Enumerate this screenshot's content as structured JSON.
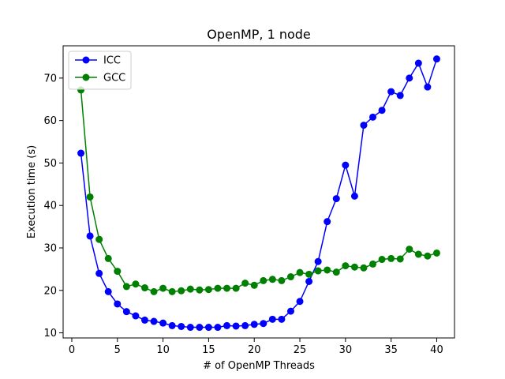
{
  "chart_data": {
    "type": "line",
    "title": "OpenMP, 1 node",
    "xlabel": "# of OpenMP Threads",
    "ylabel": "Execution time (s)",
    "xlim": [
      -0.95,
      41.95
    ],
    "ylim": [
      8.8,
      77.6
    ],
    "xticks": [
      0,
      5,
      10,
      15,
      20,
      25,
      30,
      35,
      40
    ],
    "yticks": [
      10,
      20,
      30,
      40,
      50,
      60,
      70
    ],
    "legend_position": "top-left",
    "grid": false,
    "x": [
      1,
      2,
      3,
      4,
      5,
      6,
      7,
      8,
      9,
      10,
      11,
      12,
      13,
      14,
      15,
      16,
      17,
      18,
      19,
      20,
      21,
      22,
      23,
      24,
      25,
      26,
      27,
      28,
      29,
      30,
      31,
      32,
      33,
      34,
      35,
      36,
      37,
      38,
      39,
      40
    ],
    "series": [
      {
        "name": "ICC",
        "color": "#0000ff",
        "values": [
          52.3,
          32.8,
          24.0,
          19.7,
          16.8,
          15.0,
          14.0,
          13.0,
          12.7,
          12.3,
          11.7,
          11.5,
          11.3,
          11.3,
          11.3,
          11.3,
          11.7,
          11.6,
          11.7,
          12.0,
          12.2,
          13.2,
          13.2,
          15.1,
          17.4,
          22.1,
          26.8,
          36.2,
          41.6,
          49.5,
          42.2,
          58.9,
          60.8,
          62.4,
          66.8,
          65.9,
          70.0,
          73.5,
          67.9,
          74.5
        ]
      },
      {
        "name": "GCC",
        "color": "#008000",
        "values": [
          67.2,
          42.0,
          32.0,
          27.5,
          24.5,
          20.9,
          21.5,
          20.6,
          19.7,
          20.5,
          19.7,
          19.9,
          20.3,
          20.1,
          20.2,
          20.5,
          20.5,
          20.5,
          21.7,
          21.2,
          22.3,
          22.6,
          22.3,
          23.2,
          24.2,
          23.8,
          24.6,
          24.8,
          24.3,
          25.8,
          25.5,
          25.3,
          26.2,
          27.3,
          27.5,
          27.4,
          29.7,
          28.5,
          28.1,
          28.8
        ]
      }
    ]
  }
}
